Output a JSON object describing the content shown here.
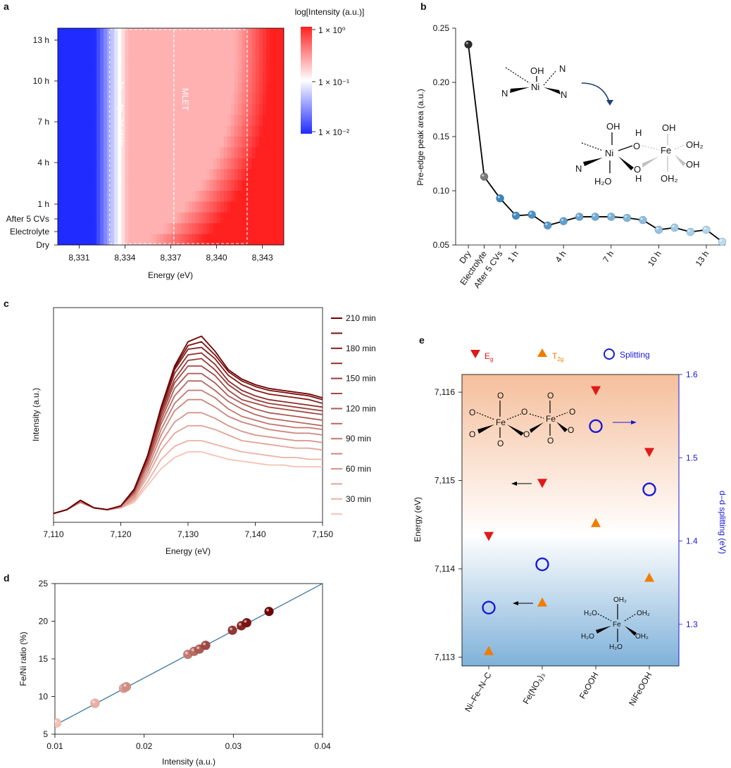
{
  "panels": {
    "a": "a",
    "b": "b",
    "c": "c",
    "d": "d",
    "e": "e"
  },
  "colors": {
    "heat_low": "#1f2bff",
    "heat_mid": "#ffffff",
    "heat_high": "#ff2020",
    "b_dark": "#2b2b2b",
    "b_blue": "#3a86c0",
    "b_light": "#b9dcf0",
    "c_dark": "#6e0000",
    "c_light": "#f7c1b3",
    "e_eg": "#e01919",
    "e_t2g": "#f07d00",
    "e_split": "#1a1ad4",
    "e_bg_top": "#f5bf9c",
    "e_bg_bottom": "#7fb1d9",
    "fit_line": "#2e6d9c"
  },
  "chart_data": [
    {
      "panel": "a",
      "type": "heatmap",
      "title": "log[Intensity (a.u.)]",
      "xlabel": "Energy (eV)",
      "ylabel": "",
      "x_ticks": [
        "8,331",
        "8,334",
        "8,337",
        "8,340",
        "8,343"
      ],
      "x_tick_values": [
        8331,
        8334,
        8337,
        8340,
        8343
      ],
      "xlim": [
        8329.6,
        8344.4
      ],
      "y_ticks": [
        "13 h",
        "10 h",
        "7 h",
        "4 h",
        "1 h",
        "After 5 CVs",
        "Electrolyte",
        "Dry"
      ],
      "colorbar_ticks": [
        "1 × 10⁰",
        "1 × 10⁻¹",
        "1 × 10⁻²"
      ],
      "colorbar_range": [
        -2,
        0
      ],
      "annotations": [
        {
          "text": "1s → 4p–3d state",
          "x_range": [
            8333.0,
            8337.2
          ]
        },
        {
          "text": "MLET",
          "x_range": [
            8337.2,
            8342.0
          ]
        }
      ]
    },
    {
      "panel": "b",
      "type": "line",
      "xlabel": "",
      "ylabel": "Pre-edge peak area (a.u.)",
      "ylim": [
        0.05,
        0.25
      ],
      "y_ticks": [
        "0.05",
        "0.10",
        "0.15",
        "0.20",
        "0.25"
      ],
      "y_tick_values": [
        0.05,
        0.1,
        0.15,
        0.2,
        0.25
      ],
      "x_tick_labels": [
        "Dry",
        "Electrolyte",
        "After 5 CVs",
        "1 h",
        "4 h",
        "7 h",
        "10 h",
        "13 h"
      ],
      "x_tick_positions": [
        0,
        1,
        2,
        3,
        6,
        9,
        12,
        15
      ],
      "xlim": [
        -0.8,
        16.2
      ],
      "x": [
        0,
        1,
        2,
        3,
        4,
        5,
        6,
        7,
        8,
        9,
        10,
        11,
        12,
        13,
        14,
        15,
        16
      ],
      "values": [
        0.235,
        0.113,
        0.093,
        0.077,
        0.078,
        0.068,
        0.072,
        0.076,
        0.076,
        0.076,
        0.075,
        0.073,
        0.064,
        0.066,
        0.062,
        0.064,
        0.053
      ],
      "structure_labels": {
        "top": [
          "OH",
          "N",
          "Ni",
          "N",
          "N"
        ],
        "bottom": [
          "OH",
          "Ni",
          "N",
          "H₂O",
          "H",
          "O",
          "O",
          "H",
          "Fe",
          "OH",
          "OH₂",
          "OH",
          "OH₂"
        ]
      }
    },
    {
      "panel": "c",
      "type": "line",
      "xlabel": "Energy (eV)",
      "ylabel": "Intensity (a.u.)",
      "xlim": [
        7110,
        7150
      ],
      "x_ticks": [
        "7,110",
        "7,120",
        "7,130",
        "7,140",
        "7,150"
      ],
      "x_tick_values": [
        7110,
        7120,
        7130,
        7140,
        7150
      ],
      "legend": [
        "210 min",
        "180 min",
        "150 min",
        "120 min",
        "90 min",
        "60 min",
        "30 min"
      ],
      "series_count": 14,
      "x": [
        7110,
        7112,
        7114,
        7116,
        7118,
        7120,
        7122,
        7124,
        7126,
        7128,
        7130,
        7132,
        7134,
        7136,
        7138,
        7140,
        7142,
        7144,
        7146,
        7148,
        7150
      ],
      "series": [
        {
          "values": [
            0.01,
            0.03,
            0.08,
            0.04,
            0.03,
            0.05,
            0.14,
            0.32,
            0.58,
            0.8,
            0.93,
            0.96,
            0.88,
            0.78,
            0.73,
            0.7,
            0.68,
            0.67,
            0.66,
            0.65,
            0.63
          ]
        },
        {
          "values": [
            0.01,
            0.03,
            0.08,
            0.04,
            0.03,
            0.05,
            0.14,
            0.32,
            0.58,
            0.79,
            0.91,
            0.93,
            0.86,
            0.77,
            0.72,
            0.69,
            0.67,
            0.66,
            0.65,
            0.64,
            0.62
          ]
        },
        {
          "values": [
            0.01,
            0.03,
            0.08,
            0.04,
            0.03,
            0.05,
            0.14,
            0.32,
            0.57,
            0.78,
            0.89,
            0.9,
            0.84,
            0.75,
            0.7,
            0.67,
            0.65,
            0.64,
            0.63,
            0.62,
            0.6
          ]
        },
        {
          "values": [
            0.01,
            0.03,
            0.08,
            0.04,
            0.03,
            0.05,
            0.14,
            0.31,
            0.56,
            0.76,
            0.86,
            0.87,
            0.81,
            0.72,
            0.67,
            0.64,
            0.62,
            0.61,
            0.6,
            0.59,
            0.58
          ]
        },
        {
          "values": [
            0.01,
            0.03,
            0.08,
            0.04,
            0.03,
            0.05,
            0.13,
            0.31,
            0.55,
            0.73,
            0.83,
            0.84,
            0.78,
            0.7,
            0.65,
            0.62,
            0.6,
            0.59,
            0.58,
            0.57,
            0.56
          ]
        },
        {
          "values": [
            0.01,
            0.03,
            0.08,
            0.04,
            0.03,
            0.05,
            0.13,
            0.3,
            0.53,
            0.71,
            0.8,
            0.8,
            0.75,
            0.67,
            0.62,
            0.6,
            0.58,
            0.57,
            0.56,
            0.55,
            0.54
          ]
        },
        {
          "values": [
            0.01,
            0.03,
            0.08,
            0.04,
            0.03,
            0.05,
            0.13,
            0.29,
            0.51,
            0.68,
            0.76,
            0.76,
            0.71,
            0.64,
            0.6,
            0.57,
            0.55,
            0.54,
            0.53,
            0.52,
            0.51
          ]
        },
        {
          "values": [
            0.01,
            0.03,
            0.08,
            0.04,
            0.03,
            0.05,
            0.12,
            0.28,
            0.49,
            0.64,
            0.72,
            0.72,
            0.67,
            0.61,
            0.57,
            0.54,
            0.52,
            0.51,
            0.5,
            0.49,
            0.48
          ]
        },
        {
          "values": [
            0.01,
            0.03,
            0.07,
            0.04,
            0.03,
            0.05,
            0.12,
            0.27,
            0.46,
            0.6,
            0.67,
            0.67,
            0.63,
            0.57,
            0.53,
            0.51,
            0.49,
            0.48,
            0.47,
            0.47,
            0.46
          ]
        },
        {
          "values": [
            0.01,
            0.03,
            0.07,
            0.04,
            0.03,
            0.05,
            0.11,
            0.25,
            0.43,
            0.56,
            0.62,
            0.62,
            0.58,
            0.53,
            0.5,
            0.48,
            0.46,
            0.45,
            0.44,
            0.44,
            0.43
          ]
        },
        {
          "values": [
            0.01,
            0.03,
            0.07,
            0.04,
            0.03,
            0.04,
            0.1,
            0.23,
            0.39,
            0.5,
            0.55,
            0.55,
            0.52,
            0.48,
            0.45,
            0.43,
            0.42,
            0.41,
            0.4,
            0.4,
            0.39
          ]
        },
        {
          "values": [
            0.01,
            0.03,
            0.07,
            0.04,
            0.03,
            0.04,
            0.09,
            0.21,
            0.35,
            0.44,
            0.48,
            0.48,
            0.46,
            0.43,
            0.4,
            0.39,
            0.38,
            0.37,
            0.36,
            0.36,
            0.35
          ]
        },
        {
          "values": [
            0.01,
            0.03,
            0.07,
            0.04,
            0.03,
            0.04,
            0.08,
            0.18,
            0.3,
            0.37,
            0.4,
            0.4,
            0.38,
            0.36,
            0.34,
            0.33,
            0.32,
            0.31,
            0.31,
            0.3,
            0.3
          ]
        },
        {
          "values": [
            0.01,
            0.03,
            0.07,
            0.04,
            0.03,
            0.04,
            0.07,
            0.16,
            0.25,
            0.31,
            0.34,
            0.34,
            0.32,
            0.3,
            0.29,
            0.28,
            0.27,
            0.27,
            0.26,
            0.26,
            0.26
          ]
        }
      ]
    },
    {
      "panel": "d",
      "type": "scatter",
      "xlabel": "Intensity (a.u.)",
      "ylabel": "Fe/Ni ratio (%)",
      "xlim": [
        0.01,
        0.04
      ],
      "ylim": [
        5,
        25
      ],
      "x_ticks": [
        "0.01",
        "0.02",
        "0.03",
        "0.04"
      ],
      "x_tick_values": [
        0.01,
        0.02,
        0.03,
        0.04
      ],
      "y_ticks": [
        "5",
        "10",
        "15",
        "20",
        "25"
      ],
      "y_tick_values": [
        5,
        10,
        15,
        20,
        25
      ],
      "x": [
        0.0102,
        0.0145,
        0.0177,
        0.018,
        0.0249,
        0.0256,
        0.0262,
        0.0269,
        0.0299,
        0.0309,
        0.0315,
        0.034
      ],
      "y": [
        6.5,
        9.1,
        11.1,
        11.3,
        15.6,
        16.0,
        16.3,
        16.8,
        18.8,
        19.4,
        19.8,
        21.3
      ],
      "fit_line": {
        "x": [
          0.01,
          0.04
        ],
        "y": [
          6.2,
          25.0
        ]
      }
    },
    {
      "panel": "e",
      "type": "scatter",
      "xlabel": "",
      "ylabel": "Energy (eV)",
      "ylabel_right": "d–d splitting (eV)",
      "categories": [
        "Ni–Fe–N–C",
        "Fe(NO₃)₃",
        "FeOOH",
        "NiFeOOH"
      ],
      "ylim": [
        7112.9,
        7116.2
      ],
      "y_ticks": [
        "7,113",
        "7,114",
        "7,115",
        "7,116"
      ],
      "y_tick_values": [
        7113,
        7114,
        7115,
        7116
      ],
      "y2lim": [
        1.25,
        1.6
      ],
      "y2_ticks": [
        "1.3",
        "1.4",
        "1.5",
        "1.6"
      ],
      "y2_tick_values": [
        1.3,
        1.4,
        1.5,
        1.6
      ],
      "legend": [
        "E",
        "g",
        "T",
        "2g",
        "Splitting"
      ],
      "series": [
        {
          "name": "E",
          "axis": "left",
          "values": [
            7114.37,
            7114.97,
            7116.02,
            7115.32
          ]
        },
        {
          "name": "T",
          "axis": "left",
          "values": [
            7113.07,
            7113.62,
            7114.52,
            7113.9
          ]
        },
        {
          "name": "Splitting",
          "axis": "right",
          "values": [
            1.32,
            1.372,
            1.538,
            1.462
          ]
        }
      ],
      "structure_labels": {
        "dimer": [
          "O",
          "O",
          "O",
          "O",
          "O",
          "O",
          "O",
          "O",
          "O",
          "O",
          "Fe",
          "Fe"
        ],
        "hexaaqua": [
          "OH₂",
          "H₂O",
          "OH₂",
          "H₂O",
          "OH₂",
          "H₂O",
          "Fe"
        ]
      }
    }
  ]
}
